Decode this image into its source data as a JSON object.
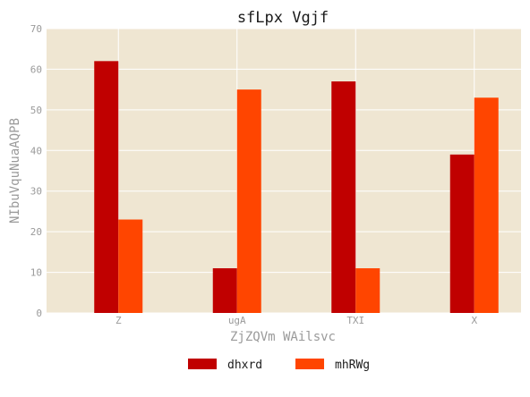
{
  "chart_data": {
    "type": "bar",
    "title": "sfLpx  Vgjf",
    "xlabel": "ZjZQVm WAilsvc",
    "ylabel": "NIbuVquNuaAQPB",
    "categories": [
      "Z",
      "ugA",
      "TXI",
      "X"
    ],
    "ylim": [
      0,
      70
    ],
    "yticks": [
      "0",
      "10",
      "20",
      "30",
      "40",
      "50",
      "60",
      "70"
    ],
    "grid": true,
    "legend_position": "bottom-center",
    "background_color": "#efe6d2",
    "series": [
      {
        "name": "dhxrd",
        "color": "#c00000",
        "values": [
          62,
          11,
          57,
          39
        ]
      },
      {
        "name": "mhRWg",
        "color": "#ff4500",
        "values": [
          23,
          55,
          11,
          53
        ]
      }
    ]
  }
}
